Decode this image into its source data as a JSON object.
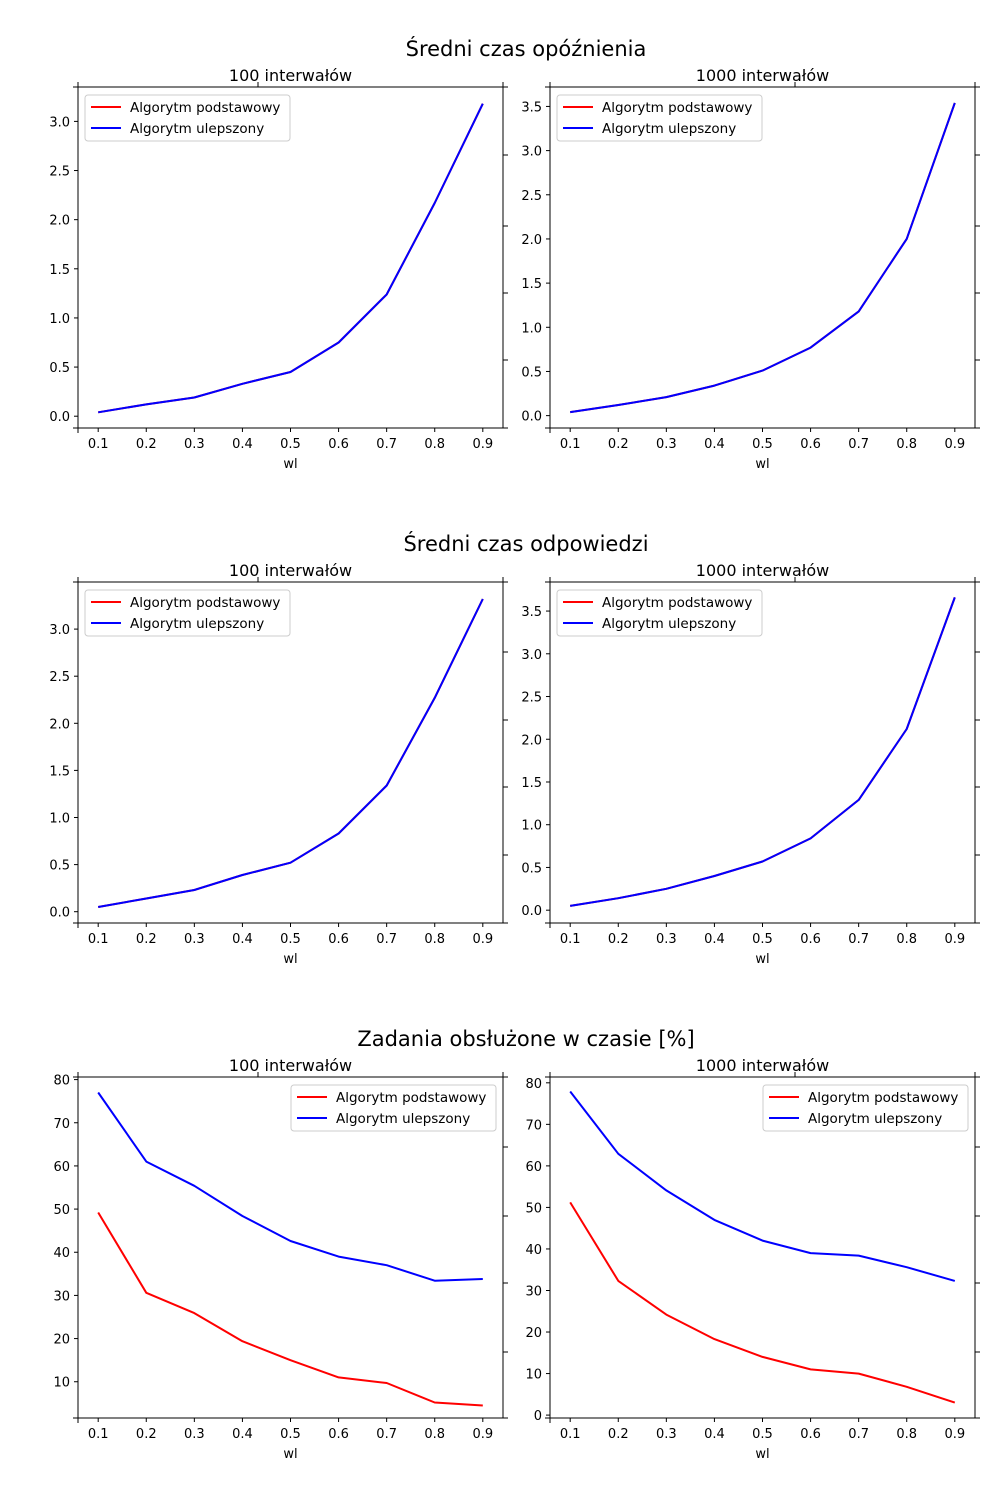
{
  "figure": {
    "rows": [
      {
        "title": "Średni czas opóźnienia",
        "panels": [
          {
            "title": "100 interwałów",
            "xlabel": "wl",
            "legend_loc": "upper left",
            "x": [
              0.1,
              0.2,
              0.3,
              0.4,
              0.5,
              0.6,
              0.7,
              0.8,
              0.9
            ],
            "xlim": [
              0.058,
              0.942
            ],
            "xticks": [
              0.1,
              0.2,
              0.3,
              0.4,
              0.5,
              0.6,
              0.7,
              0.8,
              0.9
            ],
            "ylim": [
              -0.12,
              3.35
            ],
            "yticks": [
              0.0,
              0.5,
              1.0,
              1.5,
              2.0,
              2.5,
              3.0
            ],
            "series": [
              {
                "name": "Algorytm podstawowy",
                "color": "#ff0000",
                "values": [
                  0.04,
                  0.12,
                  0.19,
                  0.33,
                  0.45,
                  0.75,
                  1.24,
                  2.17,
                  3.18
                ]
              },
              {
                "name": "Algorytm ulepszony",
                "color": "#0000ff",
                "values": [
                  0.04,
                  0.12,
                  0.19,
                  0.33,
                  0.45,
                  0.75,
                  1.24,
                  2.17,
                  3.18
                ]
              }
            ]
          },
          {
            "title": "1000 interwałów",
            "xlabel": "wl",
            "legend_loc": "upper left",
            "x": [
              0.1,
              0.2,
              0.3,
              0.4,
              0.5,
              0.6,
              0.7,
              0.8,
              0.9
            ],
            "xlim": [
              0.058,
              0.942
            ],
            "xticks": [
              0.1,
              0.2,
              0.3,
              0.4,
              0.5,
              0.6,
              0.7,
              0.8,
              0.9
            ],
            "ylim": [
              -0.14,
              3.72
            ],
            "yticks": [
              0.0,
              0.5,
              1.0,
              1.5,
              2.0,
              2.5,
              3.0,
              3.5
            ],
            "series": [
              {
                "name": "Algorytm podstawowy",
                "color": "#ff0000",
                "values": [
                  0.04,
                  0.12,
                  0.21,
                  0.34,
                  0.51,
                  0.77,
                  1.18,
                  2.0,
                  3.54
                ]
              },
              {
                "name": "Algorytm ulepszony",
                "color": "#0000ff",
                "values": [
                  0.04,
                  0.12,
                  0.21,
                  0.34,
                  0.51,
                  0.77,
                  1.18,
                  2.0,
                  3.54
                ]
              }
            ]
          }
        ]
      },
      {
        "title": "Średni czas odpowiedzi",
        "panels": [
          {
            "title": "100 interwałów",
            "xlabel": "wl",
            "legend_loc": "upper left",
            "x": [
              0.1,
              0.2,
              0.3,
              0.4,
              0.5,
              0.6,
              0.7,
              0.8,
              0.9
            ],
            "xlim": [
              0.058,
              0.942
            ],
            "xticks": [
              0.1,
              0.2,
              0.3,
              0.4,
              0.5,
              0.6,
              0.7,
              0.8,
              0.9
            ],
            "ylim": [
              -0.12,
              3.5
            ],
            "yticks": [
              0.0,
              0.5,
              1.0,
              1.5,
              2.0,
              2.5,
              3.0
            ],
            "series": [
              {
                "name": "Algorytm podstawowy",
                "color": "#ff0000",
                "values": [
                  0.05,
                  0.14,
                  0.23,
                  0.39,
                  0.52,
                  0.83,
                  1.34,
                  2.27,
                  3.32
                ]
              },
              {
                "name": "Algorytm ulepszony",
                "color": "#0000ff",
                "values": [
                  0.05,
                  0.14,
                  0.23,
                  0.39,
                  0.52,
                  0.83,
                  1.34,
                  2.27,
                  3.32
                ]
              }
            ]
          },
          {
            "title": "1000 interwałów",
            "xlabel": "wl",
            "legend_loc": "upper left",
            "x": [
              0.1,
              0.2,
              0.3,
              0.4,
              0.5,
              0.6,
              0.7,
              0.8,
              0.9
            ],
            "xlim": [
              0.058,
              0.942
            ],
            "xticks": [
              0.1,
              0.2,
              0.3,
              0.4,
              0.5,
              0.6,
              0.7,
              0.8,
              0.9
            ],
            "ylim": [
              -0.15,
              3.84
            ],
            "yticks": [
              0.0,
              0.5,
              1.0,
              1.5,
              2.0,
              2.5,
              3.0,
              3.5
            ],
            "series": [
              {
                "name": "Algorytm podstawowy",
                "color": "#ff0000",
                "values": [
                  0.05,
                  0.14,
                  0.25,
                  0.4,
                  0.57,
                  0.84,
                  1.29,
                  2.12,
                  3.66
                ]
              },
              {
                "name": "Algorytm ulepszony",
                "color": "#0000ff",
                "values": [
                  0.05,
                  0.14,
                  0.25,
                  0.4,
                  0.57,
                  0.84,
                  1.29,
                  2.12,
                  3.66
                ]
              }
            ]
          }
        ]
      },
      {
        "title": "Zadania obsłużone w czasie [%]",
        "panels": [
          {
            "title": "100 interwałów",
            "xlabel": "wl",
            "legend_loc": "upper right",
            "x": [
              0.1,
              0.2,
              0.3,
              0.4,
              0.5,
              0.6,
              0.7,
              0.8,
              0.9
            ],
            "xlim": [
              0.058,
              0.942
            ],
            "xticks": [
              0.1,
              0.2,
              0.3,
              0.4,
              0.5,
              0.6,
              0.7,
              0.8,
              0.9
            ],
            "ylim": [
              1.6,
              80.6
            ],
            "yticks": [
              10,
              20,
              30,
              40,
              50,
              60,
              70,
              80
            ],
            "series": [
              {
                "name": "Algorytm podstawowy",
                "color": "#ff0000",
                "values": [
                  49.2,
                  30.6,
                  25.9,
                  19.4,
                  15.0,
                  11.0,
                  9.7,
                  5.2,
                  4.5
                ]
              },
              {
                "name": "Algorytm ulepszony",
                "color": "#0000ff",
                "values": [
                  77.0,
                  61.0,
                  55.4,
                  48.4,
                  42.6,
                  39.0,
                  37.0,
                  33.4,
                  33.8
                ]
              }
            ]
          },
          {
            "title": "1000 interwałów",
            "xlabel": "wl",
            "legend_loc": "upper right",
            "x": [
              0.1,
              0.2,
              0.3,
              0.4,
              0.5,
              0.6,
              0.7,
              0.8,
              0.9
            ],
            "xlim": [
              0.058,
              0.942
            ],
            "xticks": [
              0.1,
              0.2,
              0.3,
              0.4,
              0.5,
              0.6,
              0.7,
              0.8,
              0.9
            ],
            "ylim": [
              -0.7,
              81.4
            ],
            "yticks": [
              0,
              10,
              20,
              30,
              40,
              50,
              60,
              70,
              80
            ],
            "series": [
              {
                "name": "Algorytm podstawowy",
                "color": "#ff0000",
                "values": [
                  51.2,
                  32.3,
                  24.2,
                  18.3,
                  14.0,
                  11.0,
                  10.0,
                  6.8,
                  3.0
                ]
              },
              {
                "name": "Algorytm ulepszony",
                "color": "#0000ff",
                "values": [
                  77.9,
                  62.9,
                  54.1,
                  47.0,
                  42.0,
                  39.0,
                  38.4,
                  35.6,
                  32.3
                ]
              }
            ]
          }
        ]
      }
    ]
  },
  "chart_data": [
    {
      "type": "line",
      "title": "100 interwałów",
      "suptitle": "Średni czas opóźnienia",
      "xlabel": "wl",
      "x": [
        0.1,
        0.2,
        0.3,
        0.4,
        0.5,
        0.6,
        0.7,
        0.8,
        0.9
      ],
      "ylim": [
        -0.12,
        3.35
      ],
      "legend": "upper left",
      "series": [
        {
          "name": "Algorytm podstawowy",
          "values": [
            0.04,
            0.12,
            0.19,
            0.33,
            0.45,
            0.75,
            1.24,
            2.17,
            3.18
          ]
        },
        {
          "name": "Algorytm ulepszony",
          "values": [
            0.04,
            0.12,
            0.19,
            0.33,
            0.45,
            0.75,
            1.24,
            2.17,
            3.18
          ]
        }
      ]
    },
    {
      "type": "line",
      "title": "1000 interwałów",
      "suptitle": "Średni czas opóźnienia",
      "xlabel": "wl",
      "x": [
        0.1,
        0.2,
        0.3,
        0.4,
        0.5,
        0.6,
        0.7,
        0.8,
        0.9
      ],
      "ylim": [
        -0.14,
        3.72
      ],
      "legend": "upper left",
      "series": [
        {
          "name": "Algorytm podstawowy",
          "values": [
            0.04,
            0.12,
            0.21,
            0.34,
            0.51,
            0.77,
            1.18,
            2.0,
            3.54
          ]
        },
        {
          "name": "Algorytm ulepszony",
          "values": [
            0.04,
            0.12,
            0.21,
            0.34,
            0.51,
            0.77,
            1.18,
            2.0,
            3.54
          ]
        }
      ]
    },
    {
      "type": "line",
      "title": "100 interwałów",
      "suptitle": "Średni czas odpowiedzi",
      "xlabel": "wl",
      "x": [
        0.1,
        0.2,
        0.3,
        0.4,
        0.5,
        0.6,
        0.7,
        0.8,
        0.9
      ],
      "ylim": [
        -0.12,
        3.5
      ],
      "legend": "upper left",
      "series": [
        {
          "name": "Algorytm podstawowy",
          "values": [
            0.05,
            0.14,
            0.23,
            0.39,
            0.52,
            0.83,
            1.34,
            2.27,
            3.32
          ]
        },
        {
          "name": "Algorytm ulepszony",
          "values": [
            0.05,
            0.14,
            0.23,
            0.39,
            0.52,
            0.83,
            1.34,
            2.27,
            3.32
          ]
        }
      ]
    },
    {
      "type": "line",
      "title": "1000 interwałów",
      "suptitle": "Średni czas odpowiedzi",
      "xlabel": "wl",
      "x": [
        0.1,
        0.2,
        0.3,
        0.4,
        0.5,
        0.6,
        0.7,
        0.8,
        0.9
      ],
      "ylim": [
        -0.15,
        3.84
      ],
      "legend": "upper left",
      "series": [
        {
          "name": "Algorytm podstawowy",
          "values": [
            0.05,
            0.14,
            0.25,
            0.4,
            0.57,
            0.84,
            1.29,
            2.12,
            3.66
          ]
        },
        {
          "name": "Algorytm ulepszony",
          "values": [
            0.05,
            0.14,
            0.25,
            0.4,
            0.57,
            0.84,
            1.29,
            2.12,
            3.66
          ]
        }
      ]
    },
    {
      "type": "line",
      "title": "100 interwałów",
      "suptitle": "Zadania obsłużone w czasie [%]",
      "xlabel": "wl",
      "x": [
        0.1,
        0.2,
        0.3,
        0.4,
        0.5,
        0.6,
        0.7,
        0.8,
        0.9
      ],
      "ylim": [
        1.6,
        80.6
      ],
      "legend": "upper right",
      "series": [
        {
          "name": "Algorytm podstawowy",
          "values": [
            49.2,
            30.6,
            25.9,
            19.4,
            15.0,
            11.0,
            9.7,
            5.2,
            4.5
          ]
        },
        {
          "name": "Algorytm ulepszony",
          "values": [
            77.0,
            61.0,
            55.4,
            48.4,
            42.6,
            39.0,
            37.0,
            33.4,
            33.8
          ]
        }
      ]
    },
    {
      "type": "line",
      "title": "1000 interwałów",
      "suptitle": "Zadania obsłużone w czasie [%]",
      "xlabel": "wl",
      "x": [
        0.1,
        0.2,
        0.3,
        0.4,
        0.5,
        0.6,
        0.7,
        0.8,
        0.9
      ],
      "ylim": [
        -0.7,
        81.4
      ],
      "legend": "upper right",
      "series": [
        {
          "name": "Algorytm podstawowy",
          "values": [
            51.2,
            32.3,
            24.2,
            18.3,
            14.0,
            11.0,
            10.0,
            6.8,
            3.0
          ]
        },
        {
          "name": "Algorytm ulepszony",
          "values": [
            77.9,
            62.9,
            54.1,
            47.0,
            42.0,
            39.0,
            38.4,
            35.6,
            32.3
          ]
        }
      ]
    }
  ]
}
